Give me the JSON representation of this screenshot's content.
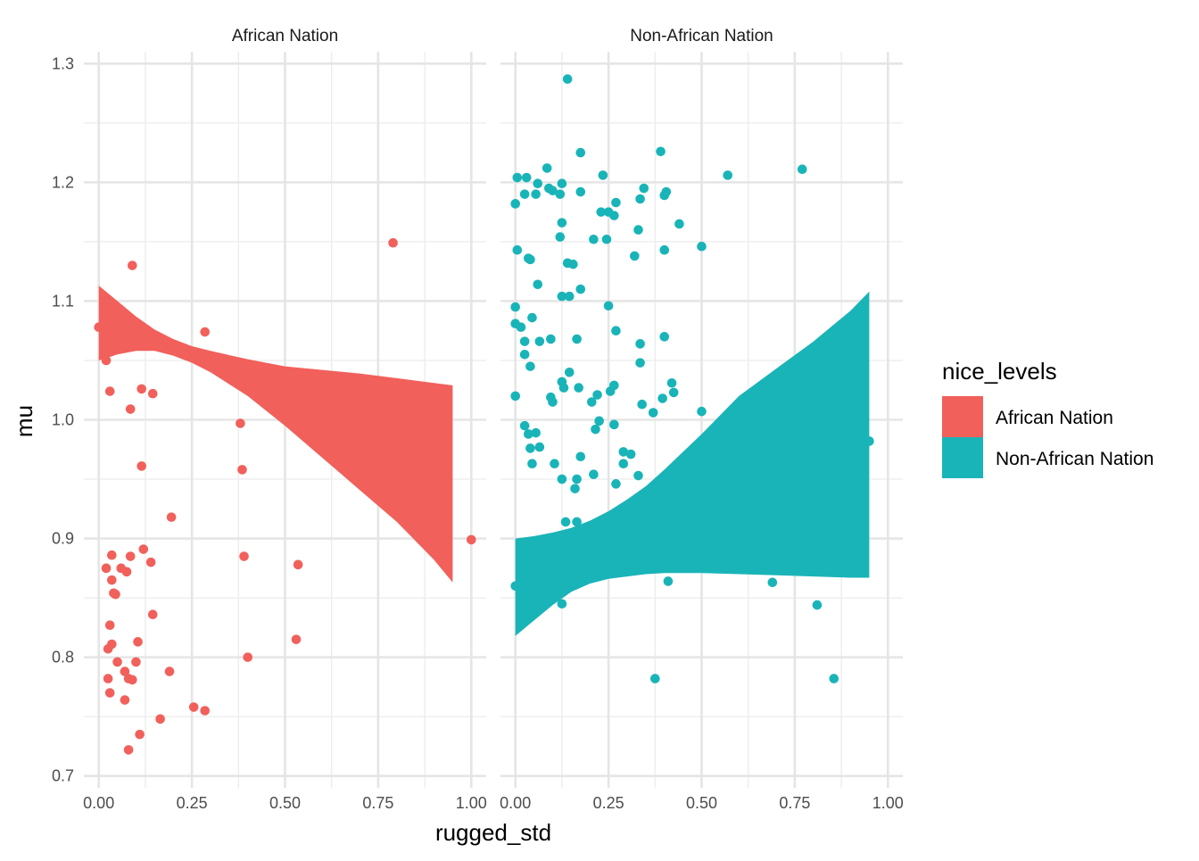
{
  "chart_data": {
    "type": "scatter",
    "xlabel": "rugged_std",
    "ylabel": "mu",
    "xlim": [
      -0.04,
      1.04
    ],
    "ylim": [
      0.69,
      1.31
    ],
    "x_ticks": [
      0,
      0.25,
      0.5,
      0.75,
      1
    ],
    "x_tick_labels": [
      "0.00",
      "0.25",
      "0.50",
      "0.75",
      "1.00"
    ],
    "y_ticks": [
      0.7,
      0.8,
      0.9,
      1.0,
      1.1,
      1.2,
      1.3
    ],
    "y_tick_labels": [
      "0.7",
      "0.8",
      "0.9",
      "1.0",
      "1.1",
      "1.2",
      "1.3"
    ],
    "grid": true,
    "legend": {
      "title": "nice_levels",
      "position": "right",
      "entries": [
        {
          "label": "African Nation",
          "color": "#F1605B"
        },
        {
          "label": "Non-African Nation",
          "color": "#19B4B8"
        }
      ]
    },
    "panels": [
      {
        "title": "African Nation",
        "color": "#F1605B",
        "band": {
          "x": [
            0.0,
            0.05,
            0.1,
            0.15,
            0.2,
            0.25,
            0.3,
            0.4,
            0.5,
            0.6,
            0.7,
            0.8,
            0.9,
            0.95
          ],
          "upper": [
            1.113,
            1.1,
            1.087,
            1.076,
            1.068,
            1.062,
            1.058,
            1.051,
            1.045,
            1.042,
            1.039,
            1.035,
            1.031,
            1.029
          ],
          "lower": [
            1.05,
            1.055,
            1.058,
            1.058,
            1.054,
            1.048,
            1.04,
            1.02,
            0.995,
            0.968,
            0.941,
            0.914,
            0.882,
            0.863
          ]
        },
        "points": [
          [
            0.09,
            1.13
          ],
          [
            0.79,
            1.149
          ],
          [
            0.285,
            1.074
          ],
          [
            0.03,
            1.024
          ],
          [
            0.115,
            1.026
          ],
          [
            0.145,
            1.022
          ],
          [
            0.085,
            1.009
          ],
          [
            0.38,
            0.997
          ],
          [
            0.115,
            0.961
          ],
          [
            0.385,
            0.958
          ],
          [
            0.195,
            0.918
          ],
          [
            1.0,
            0.899
          ],
          [
            0.12,
            0.891
          ],
          [
            0.085,
            0.885
          ],
          [
            0.035,
            0.886
          ],
          [
            0.39,
            0.885
          ],
          [
            0.14,
            0.88
          ],
          [
            0.535,
            0.878
          ],
          [
            0.02,
            0.875
          ],
          [
            0.06,
            0.875
          ],
          [
            0.075,
            0.872
          ],
          [
            0.035,
            0.865
          ],
          [
            0.04,
            0.854
          ],
          [
            0.045,
            0.853
          ],
          [
            0.145,
            0.836
          ],
          [
            0.03,
            0.827
          ],
          [
            0.035,
            0.811
          ],
          [
            0.105,
            0.813
          ],
          [
            0.53,
            0.815
          ],
          [
            0.025,
            0.807
          ],
          [
            0.4,
            0.8
          ],
          [
            0.05,
            0.796
          ],
          [
            0.1,
            0.796
          ],
          [
            0.07,
            0.788
          ],
          [
            0.19,
            0.788
          ],
          [
            0.025,
            0.782
          ],
          [
            0.08,
            0.782
          ],
          [
            0.09,
            0.781
          ],
          [
            0.03,
            0.77
          ],
          [
            0.07,
            0.764
          ],
          [
            0.255,
            0.758
          ],
          [
            0.285,
            0.755
          ],
          [
            0.165,
            0.748
          ],
          [
            0.11,
            0.735
          ],
          [
            0.08,
            0.722
          ],
          [
            0.0,
            1.078
          ],
          [
            0.02,
            1.05
          ]
        ]
      },
      {
        "title": "Non-African Nation",
        "color": "#19B4B8",
        "band": {
          "x": [
            0.0,
            0.05,
            0.1,
            0.15,
            0.2,
            0.25,
            0.3,
            0.35,
            0.4,
            0.5,
            0.6,
            0.7,
            0.8,
            0.9,
            0.95
          ],
          "upper": [
            0.9,
            0.902,
            0.905,
            0.909,
            0.915,
            0.923,
            0.933,
            0.944,
            0.958,
            0.988,
            1.02,
            1.043,
            1.066,
            1.092,
            1.108
          ],
          "lower": [
            0.818,
            0.831,
            0.844,
            0.855,
            0.862,
            0.866,
            0.868,
            0.87,
            0.871,
            0.871,
            0.87,
            0.869,
            0.868,
            0.867,
            0.867
          ]
        },
        "points": [
          [
            0.14,
            1.287
          ],
          [
            0.175,
            1.225
          ],
          [
            0.39,
            1.226
          ],
          [
            0.085,
            1.212
          ],
          [
            0.77,
            1.211
          ],
          [
            0.235,
            1.206
          ],
          [
            0.57,
            1.206
          ],
          [
            0.005,
            1.204
          ],
          [
            0.03,
            1.204
          ],
          [
            0.06,
            1.199
          ],
          [
            0.125,
            1.199
          ],
          [
            0.09,
            1.195
          ],
          [
            0.1,
            1.193
          ],
          [
            0.345,
            1.195
          ],
          [
            0.405,
            1.192
          ],
          [
            0.025,
            1.19
          ],
          [
            0.055,
            1.19
          ],
          [
            0.12,
            1.19
          ],
          [
            0.175,
            1.192
          ],
          [
            0.4,
            1.189
          ],
          [
            0.335,
            1.186
          ],
          [
            0.0,
            1.182
          ],
          [
            0.27,
            1.183
          ],
          [
            0.23,
            1.175
          ],
          [
            0.25,
            1.175
          ],
          [
            0.265,
            1.172
          ],
          [
            0.44,
            1.165
          ],
          [
            0.125,
            1.166
          ],
          [
            0.33,
            1.16
          ],
          [
            0.12,
            1.154
          ],
          [
            0.21,
            1.152
          ],
          [
            0.245,
            1.152
          ],
          [
            0.5,
            1.146
          ],
          [
            0.005,
            1.143
          ],
          [
            0.4,
            1.143
          ],
          [
            0.035,
            1.136
          ],
          [
            0.32,
            1.138
          ],
          [
            0.04,
            1.135
          ],
          [
            0.14,
            1.132
          ],
          [
            0.155,
            1.131
          ],
          [
            0.06,
            1.114
          ],
          [
            0.175,
            1.11
          ],
          [
            0.125,
            1.104
          ],
          [
            0.145,
            1.104
          ],
          [
            0.25,
            1.096
          ],
          [
            0.0,
            1.095
          ],
          [
            0.045,
            1.086
          ],
          [
            0.0,
            1.081
          ],
          [
            0.015,
            1.078
          ],
          [
            0.27,
            1.075
          ],
          [
            0.4,
            1.07
          ],
          [
            0.095,
            1.068
          ],
          [
            0.165,
            1.068
          ],
          [
            0.025,
            1.066
          ],
          [
            0.065,
            1.066
          ],
          [
            0.335,
            1.064
          ],
          [
            0.025,
            1.055
          ],
          [
            0.04,
            1.045
          ],
          [
            0.335,
            1.048
          ],
          [
            0.145,
            1.04
          ],
          [
            0.125,
            1.032
          ],
          [
            0.42,
            1.031
          ],
          [
            0.265,
            1.029
          ],
          [
            0.17,
            1.027
          ],
          [
            0.13,
            1.027
          ],
          [
            0.255,
            1.024
          ],
          [
            0.425,
            1.023
          ],
          [
            0.095,
            1.019
          ],
          [
            0.22,
            1.021
          ],
          [
            0.0,
            1.02
          ],
          [
            0.395,
            1.018
          ],
          [
            0.1,
            1.015
          ],
          [
            0.205,
            1.015
          ],
          [
            0.34,
            1.013
          ],
          [
            0.37,
            1.006
          ],
          [
            0.5,
            1.007
          ],
          [
            0.225,
            0.999
          ],
          [
            0.265,
            0.996
          ],
          [
            0.025,
            0.995
          ],
          [
            0.215,
            0.992
          ],
          [
            0.035,
            0.988
          ],
          [
            0.055,
            0.989
          ],
          [
            0.04,
            0.976
          ],
          [
            0.065,
            0.977
          ],
          [
            0.29,
            0.973
          ],
          [
            0.31,
            0.971
          ],
          [
            0.175,
            0.969
          ],
          [
            0.045,
            0.963
          ],
          [
            0.105,
            0.963
          ],
          [
            0.29,
            0.963
          ],
          [
            0.21,
            0.954
          ],
          [
            0.125,
            0.95
          ],
          [
            0.165,
            0.95
          ],
          [
            0.27,
            0.946
          ],
          [
            0.16,
            0.942
          ],
          [
            0.135,
            0.914
          ],
          [
            0.165,
            0.914
          ],
          [
            0.41,
            0.864
          ],
          [
            0.69,
            0.863
          ],
          [
            0.81,
            0.844
          ],
          [
            0.125,
            0.845
          ],
          [
            0.375,
            0.782
          ],
          [
            0.855,
            0.782
          ],
          [
            0.95,
            0.982
          ],
          [
            0.33,
            0.953
          ],
          [
            0.0,
            0.86
          ]
        ]
      }
    ]
  }
}
